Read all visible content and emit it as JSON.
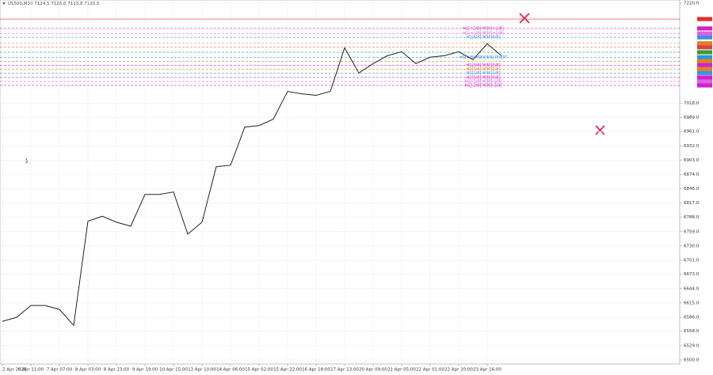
{
  "chart_data": {
    "type": "line",
    "title": "US500,M30 7124.5 7126.6 7113.8 7120.5",
    "categories": [
      "2 Apr 2026",
      null,
      "6 Apr 11:00",
      null,
      "7 Apr 07:00",
      null,
      "8 Apr 03:00",
      null,
      "8 Apr 23:00",
      null,
      "9 Apr 19:00",
      null,
      "10 Apr 15:00",
      null,
      "13 Apr 10:00",
      null,
      "14 Apr 06:00",
      null,
      "15 Apr 02:00",
      null,
      "15 Apr 22:00",
      null,
      "16 Apr 18:00",
      null,
      "17 Apr 13:00",
      null,
      "20 Apr 09:00",
      null,
      "21 Apr 05:00",
      null,
      "22 Apr 01:00",
      null,
      "22 Apr 20:00",
      null,
      "23 Apr 16:00",
      null
    ],
    "series": [
      {
        "name": "US500",
        "color": "#222222",
        "values": [
          6578,
          6586,
          6610,
          6610,
          6602,
          6570,
          6780,
          6790,
          6778,
          6770,
          6834,
          6834,
          6839,
          6754,
          6778,
          6890,
          6893,
          6970,
          6973,
          6986,
          7042,
          7037,
          7034,
          7042,
          7130,
          7079,
          7098,
          7114,
          7122,
          7098,
          7111,
          7114,
          7122,
          7106,
          7138,
          7114
        ]
      }
    ],
    "ylim": [
      6500,
      7220
    ],
    "yticks": [
      {
        "value": 6500,
        "label": "6500.0"
      },
      {
        "value": 6529,
        "label": "6529.0"
      },
      {
        "value": 6558,
        "label": "6558.0"
      },
      {
        "value": 6586,
        "label": "6586.0"
      },
      {
        "value": 6615,
        "label": "6615.0"
      },
      {
        "value": 6644,
        "label": "6644.0"
      },
      {
        "value": 6673,
        "label": "6673.0"
      },
      {
        "value": 6701,
        "label": "6701.0"
      },
      {
        "value": 6730,
        "label": "6730.0"
      },
      {
        "value": 6759,
        "label": "6759.0"
      },
      {
        "value": 6788,
        "label": "6788.0"
      },
      {
        "value": 6817,
        "label": "6817.0"
      },
      {
        "value": 6846,
        "label": "6846.0"
      },
      {
        "value": 6874,
        "label": "6874.0"
      },
      {
        "value": 6903,
        "label": "6903.0"
      },
      {
        "value": 6932,
        "label": "6932.0"
      },
      {
        "value": 6961,
        "label": "6961.0"
      },
      {
        "value": 6989,
        "label": "6989.0"
      },
      {
        "value": 7018,
        "label": "7018.0"
      },
      {
        "value": 7220,
        "label": "7220.0"
      }
    ],
    "grid": true,
    "levels": [
      {
        "value": 7188,
        "color": "#e03030"
      },
      {
        "value": 7169,
        "color": "#d020d0",
        "label": "H1[+2/8] M30[+2/8]"
      },
      {
        "value": 7159,
        "color": "#e060e0",
        "label": "H1[+1/8] M30[+1/8]"
      },
      {
        "value": 7151,
        "color": "#4090e0",
        "label": "H1[8/8] M30[8/8]"
      },
      {
        "value": 7139,
        "color": "#e08020"
      },
      {
        "value": 7131,
        "color": "#e04040"
      },
      {
        "value": 7121,
        "color": "#30a030"
      },
      {
        "value": 7111,
        "color": "#3090e0",
        "label": "H1[4/8] M30[4/8] PIVOT"
      },
      {
        "value": 7103,
        "color": "#e08020"
      },
      {
        "value": 7095,
        "color": "#d020d0",
        "label": "H1[3/8] M30[3/8]"
      },
      {
        "value": 7087,
        "color": "#e08020",
        "label": "H1[2/8] M30[2/8]"
      },
      {
        "value": 7079,
        "color": "#4090e0",
        "label": "H1[1/8] M30[1/8]"
      },
      {
        "value": 7070,
        "color": "#d020d0",
        "label": "H1[0/8] M30[0/8]"
      },
      {
        "value": 7062,
        "color": "#e060e0",
        "label": "H1[-1/8] M30[-1/8]"
      },
      {
        "value": 7054,
        "color": "#d020d0",
        "label": "H1[-2/8] M30[-2/8]"
      }
    ]
  }
}
